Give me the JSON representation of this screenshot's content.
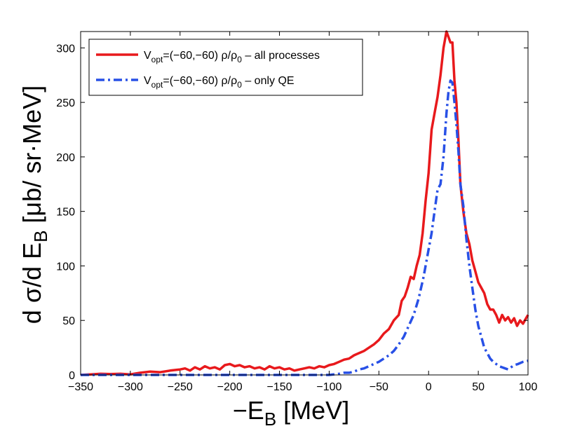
{
  "chart_data": {
    "type": "line",
    "title": "",
    "xlabel": {
      "main": "−E",
      "sub": "B",
      "unit": "[MeV]"
    },
    "ylabel": {
      "main": "d σ/d E",
      "sub": "B",
      "unit": "[μb/ sr·MeV]"
    },
    "xlim": [
      -350,
      100
    ],
    "ylim": [
      0,
      315
    ],
    "xticks": [
      -350,
      -300,
      -250,
      -200,
      -150,
      -100,
      -50,
      0,
      50,
      100
    ],
    "xtick_labels": [
      "−350",
      "−300",
      "−250",
      "−200",
      "−150",
      "−100",
      "−50",
      "0",
      "50",
      "100"
    ],
    "yticks": [
      0,
      50,
      100,
      150,
      200,
      250,
      300
    ],
    "ytick_labels": [
      "0",
      "50",
      "100",
      "150",
      "200",
      "250",
      "300"
    ],
    "grid": false,
    "legend_position": "top-left",
    "series": [
      {
        "name": "V_opt=(−60,−60) ρ/ρ_0 – all processes",
        "legend": {
          "pre": "V",
          "sub1": "opt",
          "mid": "=(−60,−60) ρ/ρ",
          "sub2": "0",
          "post": " – all processes"
        },
        "color": "#e8191c",
        "style": "solid",
        "x": [
          -350,
          -340,
          -330,
          -320,
          -310,
          -300,
          -290,
          -280,
          -270,
          -260,
          -250,
          -245,
          -240,
          -235,
          -230,
          -225,
          -220,
          -215,
          -210,
          -205,
          -200,
          -195,
          -190,
          -185,
          -180,
          -175,
          -170,
          -165,
          -160,
          -155,
          -150,
          -145,
          -140,
          -135,
          -130,
          -125,
          -120,
          -115,
          -110,
          -105,
          -100,
          -95,
          -90,
          -85,
          -80,
          -75,
          -70,
          -65,
          -60,
          -55,
          -50,
          -45,
          -40,
          -35,
          -30,
          -27,
          -24,
          -21,
          -18,
          -15,
          -12,
          -9,
          -6,
          -3,
          0,
          3,
          6,
          9,
          12,
          15,
          18,
          20,
          22,
          24,
          26,
          28,
          30,
          32,
          35,
          38,
          41,
          44,
          47,
          50,
          53,
          56,
          59,
          62,
          65,
          68,
          71,
          74,
          77,
          80,
          83,
          86,
          89,
          92,
          95,
          98,
          100
        ],
        "y": [
          0,
          0.5,
          1,
          0.8,
          1,
          0.5,
          2,
          3,
          2.5,
          4,
          5,
          6,
          4,
          7,
          5,
          8,
          6,
          7,
          5,
          9,
          10,
          8,
          9,
          7,
          8,
          6,
          7,
          5,
          8,
          6,
          7,
          5,
          6,
          4,
          5,
          6,
          7,
          6,
          8,
          7,
          9,
          10,
          12,
          14,
          15,
          18,
          20,
          22,
          25,
          28,
          32,
          38,
          42,
          50,
          55,
          68,
          72,
          80,
          90,
          88,
          100,
          110,
          130,
          160,
          185,
          225,
          240,
          255,
          275,
          300,
          315,
          310,
          305,
          305,
          270,
          250,
          215,
          175,
          150,
          130,
          120,
          105,
          95,
          85,
          80,
          75,
          65,
          60,
          60,
          55,
          48,
          55,
          50,
          53,
          48,
          52,
          45,
          50,
          47,
          52,
          55
        ]
      },
      {
        "name": "V_opt=(−60,−60) ρ/ρ_0 – only QE",
        "legend": {
          "pre": "V",
          "sub1": "opt",
          "mid": "=(−60,−60) ρ/ρ",
          "sub2": "0",
          "post": " – only QE"
        },
        "color": "#2850e6",
        "style": "dashdot",
        "x": [
          -350,
          -300,
          -250,
          -200,
          -150,
          -120,
          -100,
          -90,
          -85,
          -80,
          -75,
          -70,
          -65,
          -60,
          -55,
          -50,
          -45,
          -40,
          -35,
          -30,
          -25,
          -20,
          -15,
          -10,
          -5,
          0,
          3,
          6,
          9,
          12,
          15,
          18,
          20,
          22,
          24,
          26,
          28,
          30,
          32,
          35,
          38,
          41,
          44,
          47,
          50,
          53,
          56,
          59,
          62,
          65,
          68,
          71,
          74,
          77,
          80,
          83,
          86,
          90,
          95,
          100
        ],
        "y": [
          0,
          0,
          0,
          0,
          0,
          0,
          0,
          1,
          2,
          2,
          3,
          5,
          6,
          8,
          10,
          12,
          15,
          18,
          22,
          28,
          35,
          45,
          55,
          70,
          90,
          115,
          130,
          150,
          170,
          175,
          200,
          240,
          260,
          270,
          268,
          250,
          230,
          205,
          175,
          155,
          125,
          100,
          80,
          60,
          45,
          35,
          25,
          20,
          15,
          12,
          10,
          8,
          7,
          6,
          5,
          7,
          9,
          10,
          12,
          13
        ]
      }
    ]
  }
}
